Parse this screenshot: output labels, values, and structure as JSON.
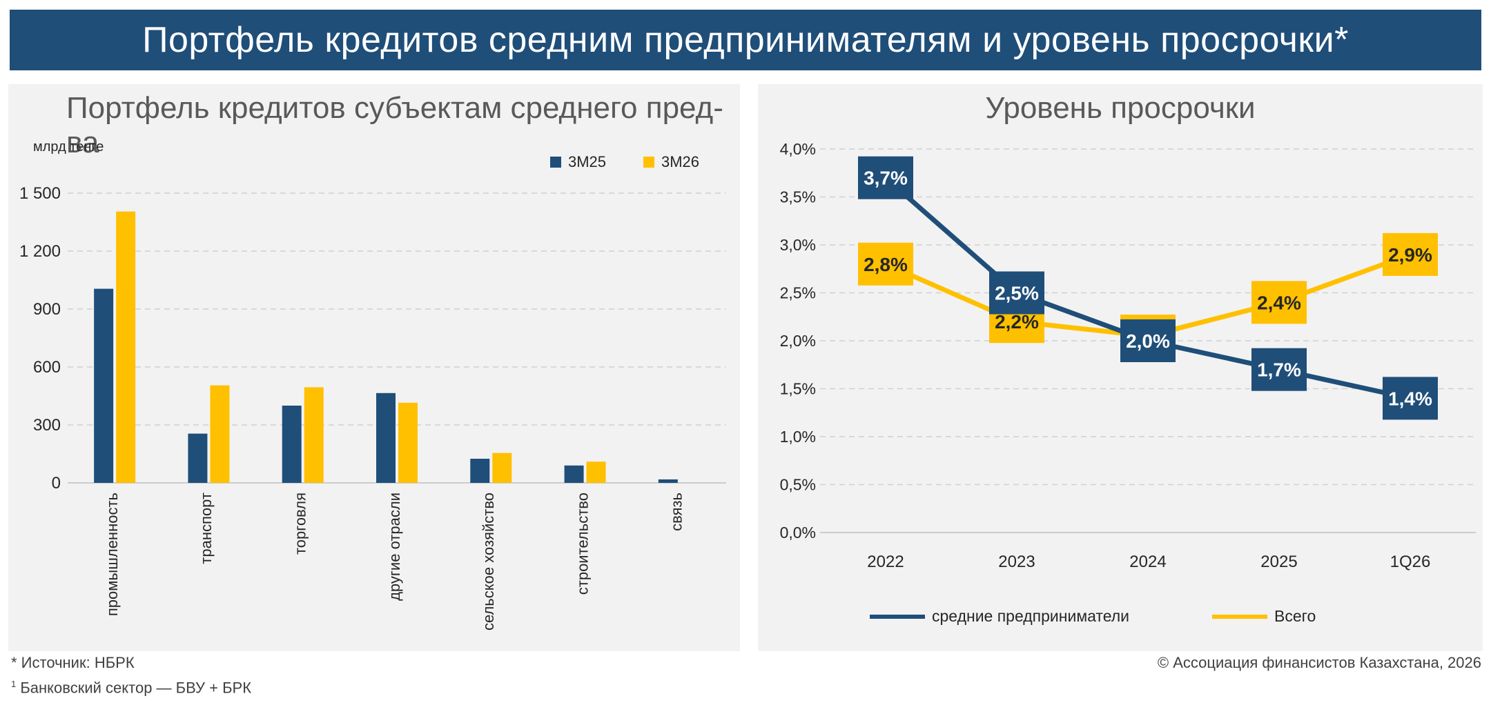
{
  "header": {
    "title": "Портфель кредитов средним предпринимателям и уровень просрочки*"
  },
  "colors": {
    "navy": "#1f4e79",
    "gold": "#ffc000",
    "grid": "#d0d0d0",
    "panel_bg": "#f2f2f2"
  },
  "footer": {
    "source": "* Источник: НБРК",
    "note_sup": "1",
    "note": " Банковский сектор — БВУ + БРК",
    "copyright": "© Ассоциация финансистов Казахстана, 2026"
  },
  "chart_data": [
    {
      "type": "bar",
      "title": "Портфель кредитов субъектам среднего пред-ва",
      "unit": "млрд тенге",
      "categories": [
        "промышленность",
        "транспорт",
        "торговля",
        "другие отрасли",
        "сельское хозяйство",
        "строительство",
        "связь"
      ],
      "series": [
        {
          "name": "3M25",
          "color": "#1f4e79",
          "values": [
            1005,
            255,
            400,
            465,
            125,
            90,
            18
          ]
        },
        {
          "name": "3M26",
          "color": "#ffc000",
          "values": [
            1405,
            505,
            495,
            415,
            155,
            110,
            0
          ]
        }
      ],
      "yticks": [
        "1 500",
        "1 200",
        "900",
        "600",
        "300",
        "0"
      ],
      "ylim": [
        0,
        1500
      ],
      "grid": true,
      "legend": "top-right"
    },
    {
      "type": "line",
      "title": "Уровень просрочки",
      "x": [
        "2022",
        "2023",
        "2024",
        "2025",
        "1Q26"
      ],
      "series": [
        {
          "name": "средние предприниматели",
          "color": "#1f4e79",
          "values": [
            3.7,
            2.5,
            2.0,
            1.7,
            1.4
          ],
          "labels": [
            "3,7%",
            "2,5%",
            "2,0%",
            "1,7%",
            "1,4%"
          ]
        },
        {
          "name": "Всего",
          "color": "#ffc000",
          "values": [
            2.8,
            2.2,
            2.05,
            2.4,
            2.9
          ],
          "labels": [
            "2,8%",
            "2,2%",
            "2,0%",
            "2,4%",
            "2,9%"
          ]
        }
      ],
      "yticks": [
        "4,0%",
        "3,5%",
        "3,0%",
        "2,5%",
        "2,0%",
        "1,5%",
        "1,0%",
        "0,5%",
        "0,0%"
      ],
      "ylim": [
        0,
        4.0
      ],
      "grid": true,
      "legend": "bottom"
    }
  ]
}
